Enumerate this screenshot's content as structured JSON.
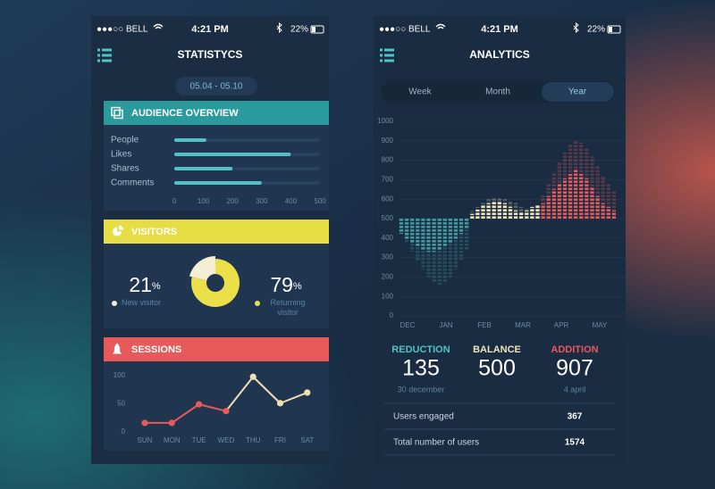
{
  "left": {
    "status": {
      "carrier": "●●●○○ BELL",
      "time": "4:21 PM",
      "battery": "22%"
    },
    "title": "STATISTYCS",
    "date_range": "05.04 - 05.10",
    "audience": {
      "title": "AUDIENCE OVERVIEW",
      "type": "bar",
      "color": "#4fc3c6",
      "categories": [
        "People",
        "Likes",
        "Shares",
        "Comments"
      ],
      "values": [
        110,
        400,
        200,
        300
      ],
      "xlim": [
        0,
        500
      ],
      "xticks": [
        0,
        100,
        200,
        300,
        400,
        500
      ]
    },
    "visitors": {
      "title": "VISITORS",
      "type": "pie",
      "items": [
        {
          "value": 21,
          "unit": "%",
          "label": "New visitor",
          "color": "#f4efd4"
        },
        {
          "value": 79,
          "unit": "%",
          "label": "Returning visitor",
          "color": "#ece04a"
        }
      ]
    },
    "sessions": {
      "title": "SESSIONS",
      "type": "line",
      "categories": [
        "SUN",
        "MON",
        "TUE",
        "WED",
        "THU",
        "FRI",
        "SAT"
      ],
      "values": [
        16,
        16,
        49,
        37,
        98,
        51,
        70
      ],
      "colors": [
        "#e8595a",
        "#e8595a",
        "#e8595a",
        "#e8595a",
        "#efe0b0",
        "#efe0b0",
        "#efe0b0"
      ],
      "ylim": [
        0,
        100
      ],
      "yticks": [
        0,
        50,
        100
      ]
    }
  },
  "right": {
    "status": {
      "carrier": "●●●○○ BELL",
      "time": "4:21 PM",
      "battery": "22%"
    },
    "title": "ANALYTICS",
    "tabs": [
      "Week",
      "Month",
      "Year"
    ],
    "selected_tab": 2,
    "chart": {
      "type": "bar",
      "baseline": 500,
      "ylim": [
        0,
        1000
      ],
      "yticks": [
        0,
        100,
        200,
        300,
        400,
        500,
        600,
        700,
        800,
        900,
        1000
      ],
      "categories": [
        "DEC",
        "JAN",
        "FEB",
        "MAR",
        "APR",
        "MAY"
      ],
      "series": [
        {
          "color": "#3f9aa0",
          "values": [
            422,
            395,
            376,
            358,
            339,
            330,
            330,
            339,
            358,
            376,
            395,
            422,
            450
          ]
        },
        {
          "color": "#efe3b8",
          "values": [
            523,
            546,
            569,
            578,
            587,
            587,
            578,
            560,
            541,
            532,
            541,
            560,
            569
          ]
        },
        {
          "color": "#e8595a",
          "values": [
            578,
            615,
            651,
            683,
            706,
            729,
            752,
            729,
            706,
            661,
            615,
            578,
            560,
            541
          ]
        }
      ],
      "shadow_series": [
        {
          "color": "#3f9aa0",
          "values": [
            430,
            380,
            330,
            280,
            240,
            200,
            170,
            160,
            170,
            200,
            240,
            290,
            340
          ]
        },
        {
          "color": "#efe3b8",
          "values": [
            540,
            560,
            580,
            600,
            610,
            610,
            600,
            590,
            580,
            560,
            550,
            560,
            570
          ]
        },
        {
          "color": "#e8595a",
          "values": [
            620,
            680,
            740,
            790,
            840,
            880,
            900,
            890,
            860,
            820,
            770,
            720,
            680,
            640
          ]
        }
      ]
    },
    "summary": [
      {
        "label": "REDUCTION",
        "value": 135,
        "note": "30 december",
        "color": "#4fc3c6"
      },
      {
        "label": "BALANCE",
        "value": 500,
        "color": "#efe3b8"
      },
      {
        "label": "ADDITION",
        "value": 907,
        "note": "4 april",
        "color": "#e8595a"
      }
    ],
    "rows": [
      {
        "label": "Users engaged",
        "value": 367
      },
      {
        "label": "Total number of users",
        "value": 1574
      }
    ]
  }
}
